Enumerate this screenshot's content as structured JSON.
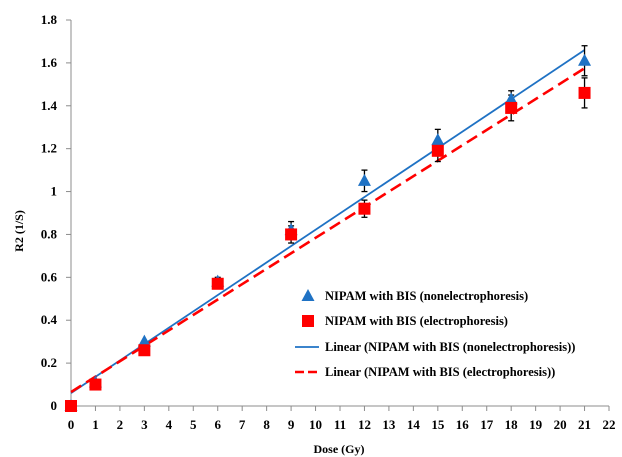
{
  "chart_data": {
    "type": "scatter",
    "title": "",
    "xlabel": "Dose (Gy)",
    "ylabel": "R2 (1/S)",
    "xlim": [
      0,
      22
    ],
    "ylim": [
      0,
      1.8
    ],
    "xticks": [
      "0",
      "1",
      "2",
      "3",
      "4",
      "5",
      "6",
      "7",
      "8",
      "9",
      "10",
      "11",
      "12",
      "13",
      "14",
      "15",
      "16",
      "17",
      "18",
      "19",
      "20",
      "21",
      "22"
    ],
    "yticks": [
      "0",
      "0.2",
      "0.4",
      "0.6",
      "0.8",
      "1",
      "1.2",
      "1.4",
      "1.6",
      "1.8"
    ],
    "grid": false,
    "legend_position": "bottom-right",
    "series": [
      {
        "name": "NIPAM with BIS (nonelectrophoresis)",
        "marker": "triangle",
        "color": "#1f72c4",
        "points": [
          {
            "x": 0,
            "y": 0.0,
            "err": 0
          },
          {
            "x": 1,
            "y": 0.11,
            "err": 0
          },
          {
            "x": 3,
            "y": 0.3,
            "err": 0
          },
          {
            "x": 6,
            "y": 0.58,
            "err": 0.02
          },
          {
            "x": 9,
            "y": 0.82,
            "err": 0.04
          },
          {
            "x": 12,
            "y": 1.05,
            "err": 0.05
          },
          {
            "x": 15,
            "y": 1.24,
            "err": 0.05
          },
          {
            "x": 18,
            "y": 1.43,
            "err": 0.04
          },
          {
            "x": 21,
            "y": 1.61,
            "err": 0.07
          }
        ]
      },
      {
        "name": "NIPAM with BIS (electrophoresis)",
        "marker": "square",
        "color": "#ff0000",
        "points": [
          {
            "x": 0,
            "y": 0.0,
            "err": 0
          },
          {
            "x": 1,
            "y": 0.1,
            "err": 0
          },
          {
            "x": 3,
            "y": 0.26,
            "err": 0
          },
          {
            "x": 6,
            "y": 0.57,
            "err": 0.02
          },
          {
            "x": 9,
            "y": 0.8,
            "err": 0.04
          },
          {
            "x": 12,
            "y": 0.92,
            "err": 0.04
          },
          {
            "x": 15,
            "y": 1.19,
            "err": 0.05
          },
          {
            "x": 18,
            "y": 1.39,
            "err": 0.06
          },
          {
            "x": 21,
            "y": 1.46,
            "err": 0.07
          }
        ]
      }
    ],
    "trendlines": [
      {
        "name": "Linear (NIPAM with BIS (nonelectrophoresis))",
        "style": "solid",
        "color": "#1f72c4",
        "from": {
          "x": 0,
          "y": 0.06
        },
        "to": {
          "x": 21,
          "y": 1.66
        }
      },
      {
        "name": "Linear (NIPAM with BIS (electrophoresis))",
        "style": "dashed",
        "color": "#ff0000",
        "from": {
          "x": 0,
          "y": 0.065
        },
        "to": {
          "x": 21,
          "y": 1.575
        }
      }
    ]
  }
}
